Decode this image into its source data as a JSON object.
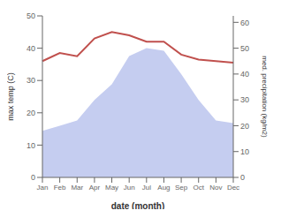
{
  "chart_data": {
    "type": "line",
    "categories": [
      "Jan",
      "Feb",
      "Mar",
      "Apr",
      "May",
      "Jun",
      "Jul",
      "Aug",
      "Sep",
      "Oct",
      "Nov",
      "Dec"
    ],
    "series": [
      {
        "type": "area",
        "axis": "y2",
        "color": "#c5cdf0",
        "values": [
          18,
          20,
          22,
          30,
          36,
          47,
          50,
          49,
          40,
          30,
          22,
          21
        ]
      },
      {
        "type": "line",
        "color": "#c0504d",
        "values": [
          36,
          38.5,
          37.5,
          43,
          45,
          44,
          42,
          42,
          38,
          36.5,
          36,
          35.5
        ]
      }
    ],
    "xlabel": "date (month)",
    "ylabel": "max temp (C)",
    "y2label": "med. precipitation (kg/m2)",
    "ylim": [
      0,
      50
    ],
    "yticks": [
      0,
      10,
      20,
      30,
      40,
      50
    ],
    "y2lim": [
      0,
      62.5
    ],
    "y2ticks": [
      0,
      10,
      20,
      30,
      40,
      50,
      60
    ],
    "grid": false
  }
}
